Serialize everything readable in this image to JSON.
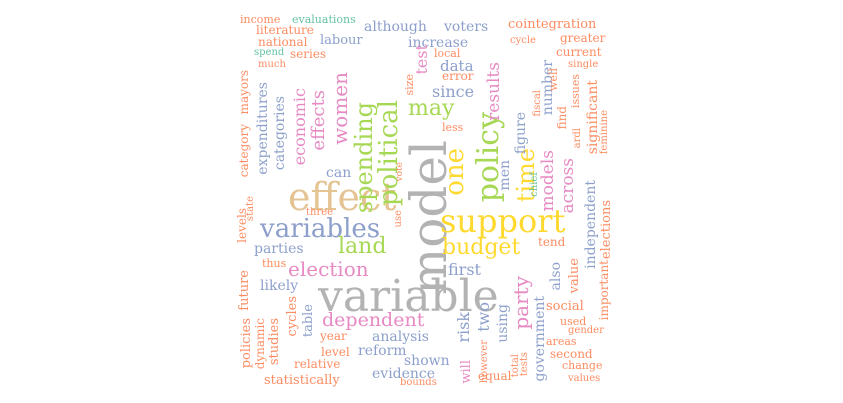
{
  "palette": {
    "orange": "#fc8d62",
    "blue": "#8da0cb",
    "pink": "#e78ac3",
    "green": "#a6d854",
    "yellow": "#ffd92f",
    "tan": "#e5c494",
    "gray": "#b3b3b3",
    "teal": "#66c2a5"
  },
  "words": [
    {
      "text": "variable",
      "color": "gray"
    },
    {
      "text": "model",
      "color": "gray"
    },
    {
      "text": "effect",
      "color": "tan"
    },
    {
      "text": "support",
      "color": "yellow"
    },
    {
      "text": "variables",
      "color": "blue"
    },
    {
      "text": "land",
      "color": "green"
    },
    {
      "text": "budget",
      "color": "yellow"
    },
    {
      "text": "election",
      "color": "pink"
    },
    {
      "text": "dependent",
      "color": "pink"
    },
    {
      "text": "policy",
      "color": "green"
    },
    {
      "text": "one",
      "color": "yellow"
    },
    {
      "text": "political",
      "color": "green"
    },
    {
      "text": "spending",
      "color": "green"
    },
    {
      "text": "may",
      "color": "green"
    },
    {
      "text": "time",
      "color": "yellow"
    },
    {
      "text": "party",
      "color": "pink"
    },
    {
      "text": "women",
      "color": "pink"
    },
    {
      "text": "effects",
      "color": "pink"
    },
    {
      "text": "economic",
      "color": "pink"
    },
    {
      "text": "results",
      "color": "pink"
    },
    {
      "text": "models",
      "color": "pink"
    },
    {
      "text": "across",
      "color": "pink"
    },
    {
      "text": "parties",
      "color": "blue"
    },
    {
      "text": "analysis",
      "color": "blue"
    },
    {
      "text": "reform",
      "color": "blue"
    },
    {
      "text": "first",
      "color": "blue"
    },
    {
      "text": "since",
      "color": "blue"
    },
    {
      "text": "data",
      "color": "blue"
    },
    {
      "text": "risk",
      "color": "blue"
    },
    {
      "text": "two",
      "color": "blue"
    },
    {
      "text": "likely",
      "color": "blue"
    },
    {
      "text": "can",
      "color": "blue"
    },
    {
      "text": "increase",
      "color": "blue"
    },
    {
      "text": "although",
      "color": "blue"
    },
    {
      "text": "voters",
      "color": "blue"
    },
    {
      "text": "labour",
      "color": "blue"
    },
    {
      "text": "categories",
      "color": "blue"
    },
    {
      "text": "expenditures",
      "color": "blue"
    },
    {
      "text": "shown",
      "color": "blue"
    },
    {
      "text": "evidence",
      "color": "blue"
    },
    {
      "text": "using",
      "color": "blue"
    },
    {
      "text": "government",
      "color": "blue"
    },
    {
      "text": "also",
      "color": "blue"
    },
    {
      "text": "men",
      "color": "blue"
    },
    {
      "text": "figure",
      "color": "blue"
    },
    {
      "text": "number",
      "color": "blue"
    },
    {
      "text": "independent",
      "color": "blue"
    },
    {
      "text": "test",
      "color": "pink"
    },
    {
      "text": "table",
      "color": "blue"
    },
    {
      "text": "level",
      "color": "orange"
    },
    {
      "text": "year",
      "color": "orange"
    },
    {
      "text": "relative",
      "color": "orange"
    },
    {
      "text": "statistically",
      "color": "orange"
    },
    {
      "text": "cycles",
      "color": "orange"
    },
    {
      "text": "studies",
      "color": "orange"
    },
    {
      "text": "future",
      "color": "orange"
    },
    {
      "text": "policies",
      "color": "orange"
    },
    {
      "text": "dynamic",
      "color": "orange"
    },
    {
      "text": "thus",
      "color": "orange"
    },
    {
      "text": "three",
      "color": "orange"
    },
    {
      "text": "levels",
      "color": "orange"
    },
    {
      "text": "state",
      "color": "orange"
    },
    {
      "text": "category",
      "color": "orange"
    },
    {
      "text": "mayors",
      "color": "orange"
    },
    {
      "text": "much",
      "color": "orange"
    },
    {
      "text": "spend",
      "color": "teal"
    },
    {
      "text": "national",
      "color": "orange"
    },
    {
      "text": "literature",
      "color": "orange"
    },
    {
      "text": "income",
      "color": "orange"
    },
    {
      "text": "evaluations",
      "color": "teal"
    },
    {
      "text": "series",
      "color": "orange"
    },
    {
      "text": "size",
      "color": "orange"
    },
    {
      "text": "local",
      "color": "orange"
    },
    {
      "text": "error",
      "color": "orange"
    },
    {
      "text": "less",
      "color": "orange"
    },
    {
      "text": "vote",
      "color": "orange"
    },
    {
      "text": "use",
      "color": "orange"
    },
    {
      "text": "will",
      "color": "pink"
    },
    {
      "text": "however",
      "color": "orange"
    },
    {
      "text": "equal",
      "color": "orange"
    },
    {
      "text": "total",
      "color": "orange"
    },
    {
      "text": "tests",
      "color": "orange"
    },
    {
      "text": "bounds",
      "color": "orange"
    },
    {
      "text": "cointegration",
      "color": "orange"
    },
    {
      "text": "cycle",
      "color": "orange"
    },
    {
      "text": "greater",
      "color": "orange"
    },
    {
      "text": "current",
      "color": "orange"
    },
    {
      "text": "single",
      "color": "orange"
    },
    {
      "text": "fiscal",
      "color": "orange"
    },
    {
      "text": "well",
      "color": "orange"
    },
    {
      "text": "issues",
      "color": "orange"
    },
    {
      "text": "find",
      "color": "orange"
    },
    {
      "text": "significant",
      "color": "orange"
    },
    {
      "text": "ardl",
      "color": "orange"
    },
    {
      "text": "feminine",
      "color": "orange"
    },
    {
      "text": "chief",
      "color": "teal"
    },
    {
      "text": "elections",
      "color": "orange"
    },
    {
      "text": "important",
      "color": "orange"
    },
    {
      "text": "value",
      "color": "orange"
    },
    {
      "text": "tend",
      "color": "orange"
    },
    {
      "text": "social",
      "color": "orange"
    },
    {
      "text": "used",
      "color": "orange"
    },
    {
      "text": "gender",
      "color": "orange"
    },
    {
      "text": "areas",
      "color": "orange"
    },
    {
      "text": "second",
      "color": "orange"
    },
    {
      "text": "change",
      "color": "orange"
    },
    {
      "text": "values",
      "color": "orange"
    }
  ]
}
